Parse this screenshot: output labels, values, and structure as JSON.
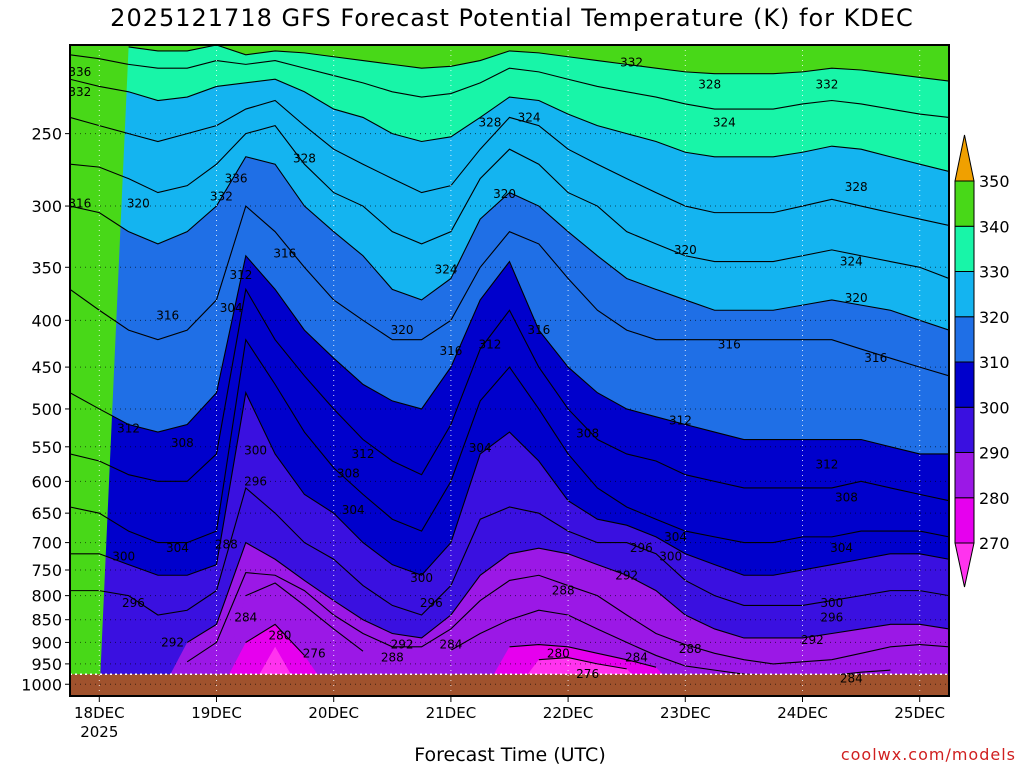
{
  "title": "2025121718 GFS Forecast Potential Temperature (K) for KDEC",
  "credit": "coolwx.com/models",
  "colors": {
    "ground": "#a0522d",
    "palette": {
      "lt270": "#ff33ee",
      "270": "#e600ee",
      "280": "#9b18e6",
      "290": "#3a10e0",
      "300": "#0000cc",
      "310": "#1f6fe6",
      "320": "#14b4f0",
      "330": "#18f5a8",
      "340": "#48d818",
      "350": "#f5f520",
      "gt350": "#f0a000"
    }
  },
  "chart_data": {
    "type": "heatmap",
    "title": "2025121718 GFS Forecast Potential Temperature (K) for KDEC",
    "xlabel": "Forecast Time (UTC)",
    "ylabel": "",
    "variable": "Potential Temperature (K)",
    "y_scale": "log-pressure (hPa), inverted",
    "y_ticks": [
      250,
      300,
      350,
      400,
      450,
      500,
      550,
      600,
      650,
      700,
      750,
      800,
      850,
      900,
      950,
      1000
    ],
    "x_ticks": [
      {
        "label": "18DEC",
        "sub": "2025",
        "t": 6
      },
      {
        "label": "19DEC",
        "sub": "",
        "t": 30
      },
      {
        "label": "20DEC",
        "sub": "",
        "t": 54
      },
      {
        "label": "21DEC",
        "sub": "",
        "t": 78
      },
      {
        "label": "22DEC",
        "sub": "",
        "t": 102
      },
      {
        "label": "23DEC",
        "sub": "",
        "t": 126
      },
      {
        "label": "24DEC",
        "sub": "",
        "t": 150
      },
      {
        "label": "25DEC",
        "sub": "",
        "t": 174
      }
    ],
    "x_range_hours": [
      0,
      180
    ],
    "p_range": [
      200,
      1030
    ],
    "ground_pressure": 975,
    "grid": true,
    "colorbar": {
      "levels": [
        270,
        280,
        290,
        300,
        310,
        320,
        330,
        340,
        350
      ],
      "labels": [
        "350",
        "340",
        "330",
        "320",
        "310",
        "300",
        "290",
        "280",
        "270"
      ],
      "placement": "right"
    },
    "isentropes_t": [
      0,
      6,
      12,
      18,
      24,
      30,
      36,
      42,
      48,
      54,
      60,
      66,
      72,
      78,
      84,
      90,
      96,
      102,
      108,
      114,
      120,
      126,
      132,
      138,
      144,
      150,
      156,
      162,
      168,
      174,
      180
    ],
    "isentropes": [
      {
        "theta": 276,
        "p": [
          null,
          null,
          null,
          null,
          null,
          null,
          null,
          910,
          null,
          null,
          null,
          null,
          null,
          null,
          null,
          null,
          940,
          935,
          950,
          962,
          null,
          null,
          null,
          null,
          null,
          null,
          null,
          null,
          null,
          null,
          null
        ]
      },
      {
        "theta": 280,
        "p": [
          null,
          null,
          null,
          null,
          null,
          null,
          900,
          860,
          930,
          null,
          null,
          null,
          null,
          null,
          null,
          910,
          905,
          910,
          925,
          940,
          958,
          null,
          null,
          null,
          null,
          null,
          null,
          null,
          null,
          null,
          null
        ]
      },
      {
        "theta": 284,
        "p": [
          null,
          null,
          null,
          null,
          null,
          null,
          800,
          775,
          820,
          870,
          920,
          null,
          null,
          918,
          880,
          850,
          830,
          840,
          870,
          900,
          930,
          955,
          965,
          975,
          978,
          978,
          978,
          970,
          965,
          null,
          null
        ]
      },
      {
        "theta": 288,
        "p": [
          null,
          null,
          null,
          null,
          945,
          900,
          755,
          760,
          790,
          840,
          880,
          910,
          910,
          870,
          810,
          770,
          760,
          780,
          800,
          840,
          880,
          905,
          925,
          940,
          950,
          945,
          940,
          925,
          910,
          905,
          910
        ]
      },
      {
        "theta": 292,
        "p": [
          null,
          null,
          null,
          null,
          900,
          860,
          700,
          730,
          770,
          810,
          850,
          880,
          890,
          840,
          760,
          720,
          710,
          720,
          740,
          760,
          790,
          840,
          870,
          890,
          890,
          890,
          880,
          870,
          860,
          860,
          870
        ]
      },
      {
        "theta": 296,
        "p": [
          790,
          790,
          800,
          840,
          830,
          790,
          610,
          650,
          700,
          730,
          780,
          820,
          840,
          780,
          660,
          640,
          650,
          680,
          700,
          700,
          720,
          770,
          800,
          820,
          820,
          820,
          810,
          800,
          790,
          790,
          800
        ]
      },
      {
        "theta": 300,
        "p": [
          720,
          720,
          740,
          760,
          760,
          740,
          480,
          560,
          620,
          650,
          700,
          740,
          760,
          700,
          560,
          530,
          570,
          630,
          660,
          670,
          690,
          720,
          740,
          760,
          760,
          750,
          740,
          730,
          720,
          720,
          730
        ]
      },
      {
        "theta": 304,
        "p": [
          640,
          650,
          680,
          700,
          700,
          680,
          420,
          470,
          530,
          580,
          620,
          660,
          680,
          600,
          490,
          450,
          500,
          560,
          610,
          640,
          660,
          680,
          690,
          700,
          700,
          690,
          690,
          680,
          680,
          680,
          690
        ]
      },
      {
        "theta": 308,
        "p": [
          560,
          570,
          590,
          600,
          600,
          560,
          370,
          420,
          460,
          500,
          540,
          570,
          590,
          520,
          430,
          390,
          450,
          500,
          540,
          560,
          570,
          590,
          600,
          610,
          610,
          610,
          610,
          600,
          610,
          620,
          630
        ]
      },
      {
        "theta": 312,
        "p": [
          480,
          500,
          520,
          530,
          520,
          480,
          340,
          370,
          410,
          440,
          470,
          490,
          500,
          450,
          380,
          345,
          410,
          450,
          480,
          500,
          510,
          520,
          530,
          540,
          540,
          540,
          540,
          540,
          550,
          560,
          560
        ]
      },
      {
        "theta": 316,
        "p": [
          370,
          390,
          410,
          420,
          410,
          380,
          300,
          320,
          350,
          380,
          400,
          420,
          420,
          400,
          350,
          320,
          330,
          360,
          390,
          410,
          420,
          420,
          420,
          420,
          420,
          420,
          420,
          430,
          440,
          450,
          460
        ]
      },
      {
        "theta": 320,
        "p": [
          300,
          305,
          320,
          330,
          320,
          300,
          265,
          270,
          300,
          320,
          340,
          370,
          380,
          360,
          310,
          290,
          300,
          320,
          340,
          360,
          370,
          380,
          390,
          390,
          390,
          385,
          380,
          385,
          390,
          400,
          410
        ]
      },
      {
        "theta": 324,
        "p": [
          270,
          272,
          280,
          290,
          285,
          270,
          250,
          245,
          270,
          290,
          300,
          320,
          330,
          320,
          280,
          260,
          270,
          290,
          300,
          320,
          330,
          340,
          345,
          345,
          345,
          340,
          335,
          340,
          345,
          350,
          360
        ]
      },
      {
        "theta": 328,
        "p": [
          240,
          245,
          250,
          255,
          250,
          245,
          235,
          230,
          245,
          260,
          270,
          280,
          290,
          285,
          260,
          240,
          245,
          260,
          270,
          280,
          290,
          300,
          305,
          305,
          305,
          300,
          295,
          300,
          305,
          310,
          315
        ]
      },
      {
        "theta": 332,
        "p": [
          218,
          222,
          225,
          230,
          228,
          222,
          220,
          218,
          225,
          235,
          240,
          250,
          255,
          252,
          240,
          228,
          230,
          238,
          245,
          250,
          255,
          262,
          265,
          265,
          265,
          262,
          258,
          260,
          265,
          270,
          275
        ]
      },
      {
        "theta": 336,
        "p": [
          205,
          207,
          210,
          212,
          212,
          208,
          210,
          208,
          212,
          216,
          220,
          225,
          228,
          226,
          220,
          212,
          214,
          218,
          222,
          225,
          228,
          232,
          235,
          235,
          235,
          232,
          230,
          232,
          235,
          238,
          240
        ]
      },
      {
        "theta": 340,
        "p": [
          null,
          null,
          201,
          203,
          203,
          200,
          205,
          203,
          204,
          206,
          208,
          210,
          212,
          211,
          208,
          203,
          204,
          206,
          208,
          210,
          212,
          214,
          215,
          215,
          215,
          214,
          212,
          213,
          215,
          217,
          219
        ]
      }
    ],
    "contour_labels": [
      {
        "text": "336",
        "t": 2,
        "p": 214
      },
      {
        "text": "332",
        "t": 2,
        "p": 225
      },
      {
        "text": "316",
        "t": 2,
        "p": 298
      },
      {
        "text": "320",
        "t": 14,
        "p": 298
      },
      {
        "text": "328",
        "t": 48,
        "p": 266
      },
      {
        "text": "336",
        "t": 34,
        "p": 280
      },
      {
        "text": "332",
        "t": 31,
        "p": 293
      },
      {
        "text": "316",
        "t": 44,
        "p": 338
      },
      {
        "text": "312",
        "t": 35,
        "p": 357
      },
      {
        "text": "304",
        "t": 33,
        "p": 388
      },
      {
        "text": "316",
        "t": 20,
        "p": 395
      },
      {
        "text": "328",
        "t": 86,
        "p": 243
      },
      {
        "text": "324",
        "t": 94,
        "p": 240
      },
      {
        "text": "332",
        "t": 115,
        "p": 209
      },
      {
        "text": "328",
        "t": 131,
        "p": 221
      },
      {
        "text": "332",
        "t": 155,
        "p": 221
      },
      {
        "text": "324",
        "t": 134,
        "p": 243
      },
      {
        "text": "328",
        "t": 161,
        "p": 286
      },
      {
        "text": "320",
        "t": 89,
        "p": 291
      },
      {
        "text": "324",
        "t": 77,
        "p": 352
      },
      {
        "text": "320",
        "t": 126,
        "p": 335
      },
      {
        "text": "324",
        "t": 160,
        "p": 345
      },
      {
        "text": "320",
        "t": 161,
        "p": 378
      },
      {
        "text": "320",
        "t": 68,
        "p": 410
      },
      {
        "text": "316",
        "t": 78,
        "p": 432
      },
      {
        "text": "312",
        "t": 86,
        "p": 425
      },
      {
        "text": "316",
        "t": 96,
        "p": 410
      },
      {
        "text": "316",
        "t": 135,
        "p": 425
      },
      {
        "text": "316",
        "t": 165,
        "p": 440
      },
      {
        "text": "312",
        "t": 12,
        "p": 525
      },
      {
        "text": "308",
        "t": 23,
        "p": 545
      },
      {
        "text": "300",
        "t": 38,
        "p": 555
      },
      {
        "text": "312",
        "t": 60,
        "p": 560
      },
      {
        "text": "308",
        "t": 57,
        "p": 588
      },
      {
        "text": "296",
        "t": 38,
        "p": 600
      },
      {
        "text": "312",
        "t": 125,
        "p": 515
      },
      {
        "text": "308",
        "t": 106,
        "p": 532
      },
      {
        "text": "304",
        "t": 84,
        "p": 552
      },
      {
        "text": "312",
        "t": 155,
        "p": 575
      },
      {
        "text": "308",
        "t": 159,
        "p": 625
      },
      {
        "text": "304",
        "t": 58,
        "p": 645
      },
      {
        "text": "304",
        "t": 22,
        "p": 710
      },
      {
        "text": "300",
        "t": 11,
        "p": 725
      },
      {
        "text": "304",
        "t": 124,
        "p": 690
      },
      {
        "text": "296",
        "t": 117,
        "p": 710
      },
      {
        "text": "300",
        "t": 123,
        "p": 725
      },
      {
        "text": "304",
        "t": 158,
        "p": 710
      },
      {
        "text": "292",
        "t": 114,
        "p": 760
      },
      {
        "text": "296",
        "t": 13,
        "p": 815
      },
      {
        "text": "300",
        "t": 72,
        "p": 765
      },
      {
        "text": "296",
        "t": 74,
        "p": 815
      },
      {
        "text": "288",
        "t": 101,
        "p": 790
      },
      {
        "text": "300",
        "t": 156,
        "p": 815
      },
      {
        "text": "296",
        "t": 156,
        "p": 845
      },
      {
        "text": "292",
        "t": 152,
        "p": 895
      },
      {
        "text": "292",
        "t": 68,
        "p": 905
      },
      {
        "text": "288",
        "t": 66,
        "p": 935
      },
      {
        "text": "284",
        "t": 78,
        "p": 905
      },
      {
        "text": "288",
        "t": 127,
        "p": 915
      },
      {
        "text": "284",
        "t": 116,
        "p": 935
      },
      {
        "text": "292",
        "t": 21,
        "p": 900
      },
      {
        "text": "284",
        "t": 36,
        "p": 845
      },
      {
        "text": "288",
        "t": 32,
        "p": 703
      },
      {
        "text": "280",
        "t": 43,
        "p": 885
      },
      {
        "text": "276",
        "t": 50,
        "p": 925
      },
      {
        "text": "280",
        "t": 100,
        "p": 925
      },
      {
        "text": "276",
        "t": 106,
        "p": 975
      },
      {
        "text": "284",
        "t": 160,
        "p": 985
      }
    ]
  }
}
